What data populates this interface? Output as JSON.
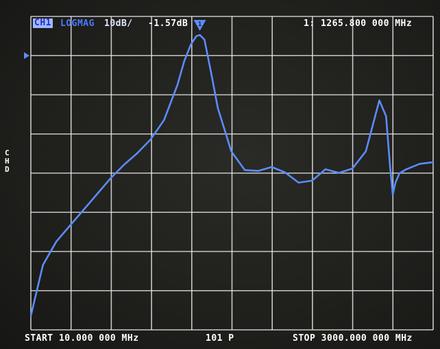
{
  "header": {
    "channel_tag": "CH1",
    "format": "LOGMAG",
    "scale": "10dB/",
    "reference_value": "-1.57dB",
    "marker_readout": "1: 1265.800 000 MHz"
  },
  "side": {
    "label": "CH D"
  },
  "footer": {
    "start": "START 10.000 000 MHz",
    "points": "101 P",
    "stop": "STOP 3000.000 000 MHz"
  },
  "colors": {
    "trace": "#5b8cff",
    "grid": "#e6e6e6",
    "background": "#1f1f1c"
  },
  "icons": {
    "reference_marker": "triangle-right-icon",
    "marker_1": "triangle-down-icon"
  },
  "chart_data": {
    "type": "line",
    "series": [
      {
        "x": [
          10,
          100,
          200,
          300,
          400,
          500,
          600,
          700,
          800,
          900,
          1000,
          1100,
          1150,
          1200,
          1240,
          1265.8,
          1300,
          1350,
          1400,
          1500,
          1600,
          1700,
          1800,
          1900,
          2000,
          2100,
          2200,
          2300,
          2400,
          2500,
          2600,
          2650,
          2680,
          2700,
          2720,
          2750,
          2800,
          2900,
          3000
        ],
        "y": [
          -68,
          -55,
          -49,
          -45,
          -41,
          -37,
          -33,
          -29.5,
          -26.5,
          -23,
          -18,
          -9,
          -3,
          1.3,
          3.4,
          3.7,
          2.5,
          -6,
          -15,
          -26,
          -30.8,
          -31,
          -30,
          -31.4,
          -34,
          -33.5,
          -30.6,
          -31.5,
          -30.4,
          -26,
          -13,
          -17,
          -30,
          -37,
          -34,
          -31.6,
          -30.6,
          -29.2,
          -28.8
        ]
      }
    ],
    "xlim": [
      10,
      3000
    ],
    "ylim": [
      -71.57,
      8.43
    ],
    "reference_level": -1.57,
    "marker": {
      "label": "1",
      "x": 1265.8
    },
    "grid": true,
    "xlabel": "",
    "ylabel": ""
  }
}
